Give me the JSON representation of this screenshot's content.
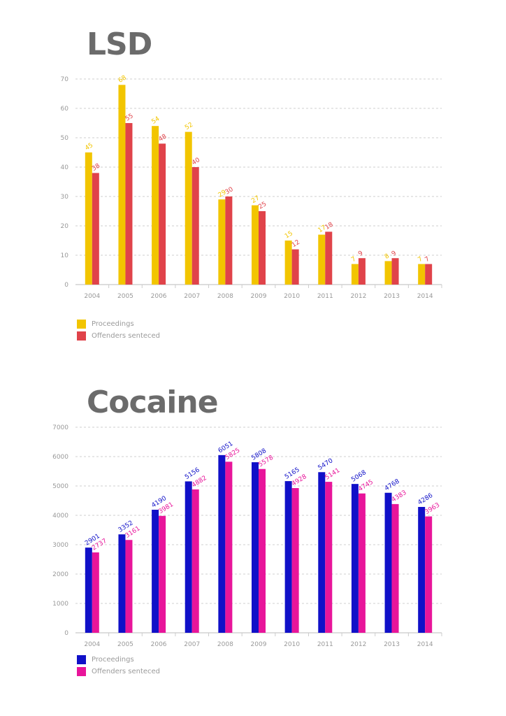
{
  "chart_data": [
    {
      "type": "bar",
      "title": "LSD",
      "categories": [
        "2004",
        "2005",
        "2006",
        "2007",
        "2008",
        "2009",
        "2010",
        "2011",
        "2012",
        "2013",
        "2014"
      ],
      "series": [
        {
          "name": "Proceedings",
          "color": "#f2c500",
          "values": [
            45,
            68,
            54,
            52,
            29,
            27,
            15,
            17,
            7,
            8,
            7
          ]
        },
        {
          "name": "Offenders senteced",
          "color": "#e0434a",
          "values": [
            38,
            55,
            48,
            40,
            30,
            25,
            12,
            18,
            9,
            9,
            7
          ]
        }
      ],
      "yticks": [
        0,
        10,
        20,
        30,
        40,
        50,
        60,
        70
      ],
      "ylim": [
        0,
        70
      ],
      "xlabel": "",
      "ylabel": "",
      "grid": true,
      "legend": "bottom-left"
    },
    {
      "type": "bar",
      "title": "Cocaine",
      "categories": [
        "2004",
        "2005",
        "2006",
        "2007",
        "2008",
        "2009",
        "2010",
        "2011",
        "2012",
        "2013",
        "2014"
      ],
      "series": [
        {
          "name": "Proceedings",
          "color": "#1010c8",
          "values": [
            2901,
            3352,
            4190,
            5156,
            6051,
            5808,
            5165,
            5470,
            5068,
            4768,
            4286
          ]
        },
        {
          "name": "Offenders senteced",
          "color": "#e8159a",
          "values": [
            2737,
            3161,
            3981,
            4882,
            5825,
            5578,
            4928,
            5141,
            4745,
            4383,
            3963
          ]
        }
      ],
      "yticks": [
        0,
        1000,
        2000,
        3000,
        4000,
        5000,
        6000,
        7000
      ],
      "ylim": [
        0,
        7000
      ],
      "xlabel": "",
      "ylabel": "",
      "grid": true,
      "legend": "bottom-left"
    }
  ]
}
